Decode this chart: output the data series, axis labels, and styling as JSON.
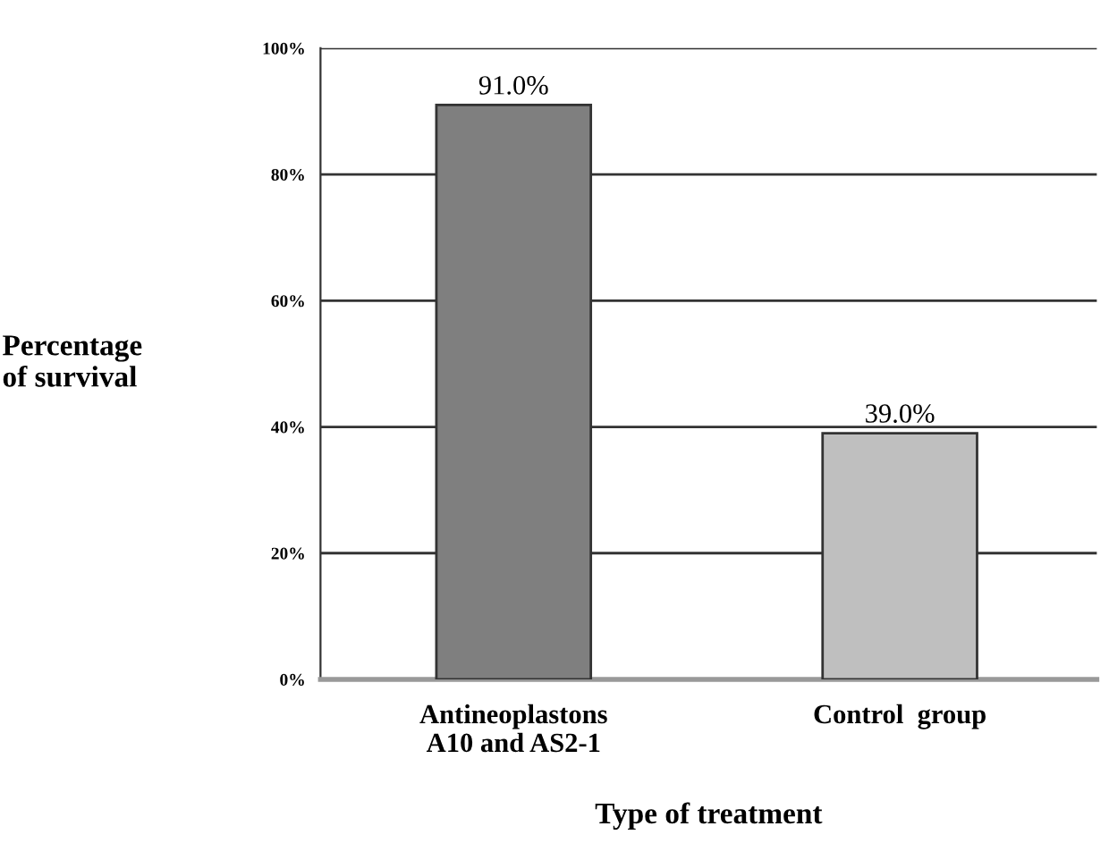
{
  "chart_data": {
    "type": "bar",
    "categories": [
      "Antineoplastons\nA10 and AS2-1",
      "Control  group"
    ],
    "values": [
      91.0,
      39.0
    ],
    "colors": [
      "#7f7f7f",
      "#bfbfbf"
    ],
    "value_labels": [
      "91.0%",
      "39.0%"
    ],
    "xlabel": "Type of treatment",
    "ylabel": "Percentage\nof survival",
    "ylim": [
      0,
      100
    ],
    "yticks": [
      {
        "value": 0,
        "label": "0%"
      },
      {
        "value": 20,
        "label": "20%"
      },
      {
        "value": 40,
        "label": "40%"
      },
      {
        "value": 60,
        "label": "60%"
      },
      {
        "value": 80,
        "label": "80%"
      },
      {
        "value": 100,
        "label": "100%"
      }
    ],
    "grid": "y"
  }
}
